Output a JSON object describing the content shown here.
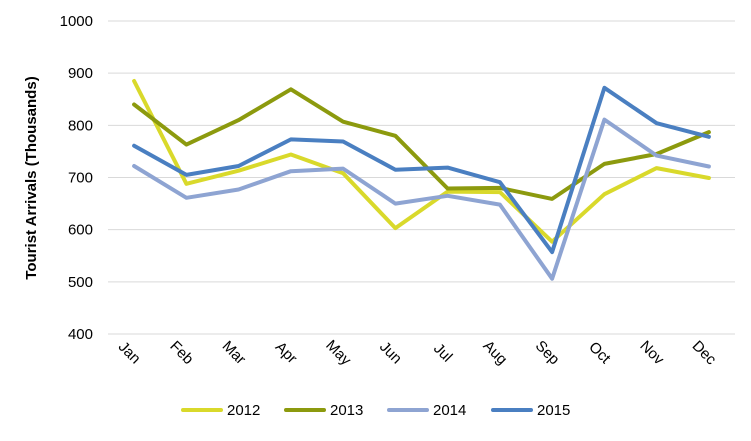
{
  "chart_data": {
    "type": "line",
    "title": "",
    "xlabel": "",
    "ylabel": "Tourist Arrivals (Thousands)",
    "ylim": [
      400,
      1000
    ],
    "yticks": [
      400,
      500,
      600,
      700,
      800,
      900,
      1000
    ],
    "grid": "horizontal",
    "legend_position": "bottom",
    "categories": [
      "Jan",
      "Feb",
      "Mar",
      "Apr",
      "May",
      "Jun",
      "Jul",
      "Aug",
      "Sep",
      "Oct",
      "Nov",
      "Dec"
    ],
    "series": [
      {
        "name": "2012",
        "color": "#D9D92B",
        "values": [
          885,
          688,
          713,
          744,
          708,
          603,
          673,
          672,
          577,
          668,
          718,
          699
        ]
      },
      {
        "name": "2013",
        "color": "#8C9A0E",
        "values": [
          840,
          763,
          810,
          869,
          807,
          780,
          679,
          680,
          659,
          726,
          745,
          787
        ]
      },
      {
        "name": "2014",
        "color": "#8EA4D2",
        "values": [
          722,
          661,
          677,
          712,
          717,
          650,
          665,
          648,
          506,
          811,
          742,
          721
        ]
      },
      {
        "name": "2015",
        "color": "#4A7FC1",
        "values": [
          761,
          705,
          722,
          773,
          769,
          715,
          719,
          691,
          557,
          872,
          804,
          778
        ]
      }
    ]
  }
}
